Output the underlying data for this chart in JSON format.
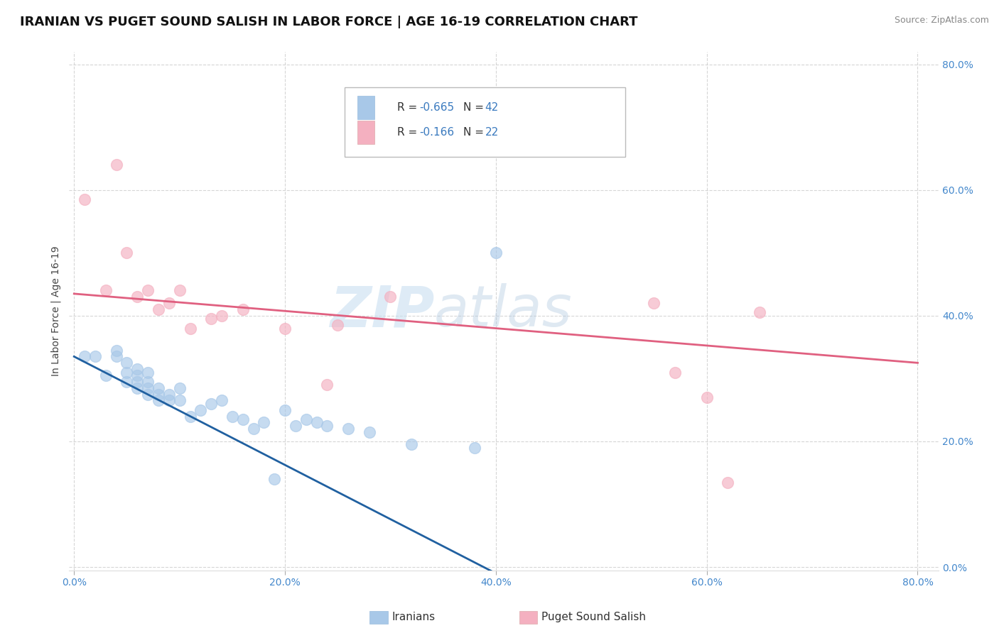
{
  "title": "IRANIAN VS PUGET SOUND SALISH IN LABOR FORCE | AGE 16-19 CORRELATION CHART",
  "source_text": "Source: ZipAtlas.com",
  "ylabel": "In Labor Force | Age 16-19",
  "xlabel": "",
  "xlim": [
    -0.005,
    0.82
  ],
  "ylim": [
    -0.005,
    0.82
  ],
  "xticks": [
    0.0,
    0.2,
    0.4,
    0.6,
    0.8
  ],
  "yticks": [
    0.0,
    0.2,
    0.4,
    0.6,
    0.8
  ],
  "xticklabels": [
    "0.0%",
    "20.0%",
    "40.0%",
    "60.0%",
    "80.0%"
  ],
  "yticklabels": [
    "0.0%",
    "20.0%",
    "40.0%",
    "60.0%",
    "80.0%"
  ],
  "watermark_zip": "ZIP",
  "watermark_atlas": "atlas",
  "legend_R1": "-0.665",
  "legend_N1": "42",
  "legend_R2": "-0.166",
  "legend_N2": "22",
  "color_iranian": "#a8c8e8",
  "color_puget": "#f4b0c0",
  "color_line_iranian": "#2060a0",
  "color_line_puget": "#e06080",
  "iranians_x": [
    0.01,
    0.02,
    0.03,
    0.04,
    0.04,
    0.05,
    0.05,
    0.05,
    0.06,
    0.06,
    0.06,
    0.06,
    0.07,
    0.07,
    0.07,
    0.07,
    0.08,
    0.08,
    0.08,
    0.09,
    0.09,
    0.1,
    0.1,
    0.11,
    0.12,
    0.13,
    0.14,
    0.15,
    0.16,
    0.17,
    0.18,
    0.19,
    0.2,
    0.21,
    0.22,
    0.23,
    0.24,
    0.26,
    0.28,
    0.32,
    0.38,
    0.4
  ],
  "iranians_y": [
    0.335,
    0.335,
    0.305,
    0.335,
    0.345,
    0.295,
    0.31,
    0.325,
    0.285,
    0.295,
    0.305,
    0.315,
    0.275,
    0.285,
    0.295,
    0.31,
    0.265,
    0.275,
    0.285,
    0.265,
    0.275,
    0.265,
    0.285,
    0.24,
    0.25,
    0.26,
    0.265,
    0.24,
    0.235,
    0.22,
    0.23,
    0.14,
    0.25,
    0.225,
    0.235,
    0.23,
    0.225,
    0.22,
    0.215,
    0.195,
    0.19,
    0.5
  ],
  "puget_x": [
    0.01,
    0.03,
    0.04,
    0.05,
    0.06,
    0.07,
    0.08,
    0.09,
    0.1,
    0.11,
    0.13,
    0.14,
    0.16,
    0.2,
    0.24,
    0.25,
    0.3,
    0.55,
    0.57,
    0.6,
    0.62,
    0.65
  ],
  "puget_y": [
    0.585,
    0.44,
    0.64,
    0.5,
    0.43,
    0.44,
    0.41,
    0.42,
    0.44,
    0.38,
    0.395,
    0.4,
    0.41,
    0.38,
    0.29,
    0.385,
    0.43,
    0.42,
    0.31,
    0.27,
    0.135,
    0.405
  ],
  "line_iranian_x0": 0.0,
  "line_iranian_y0": 0.335,
  "line_iranian_x1": 0.4,
  "line_iranian_y1": -0.01,
  "line_puget_x0": 0.0,
  "line_puget_y0": 0.435,
  "line_puget_x1": 0.8,
  "line_puget_y1": 0.325,
  "background_color": "#ffffff",
  "grid_color": "#cccccc",
  "title_fontsize": 13,
  "axis_fontsize": 10,
  "tick_fontsize": 10,
  "legend_fontsize": 11
}
